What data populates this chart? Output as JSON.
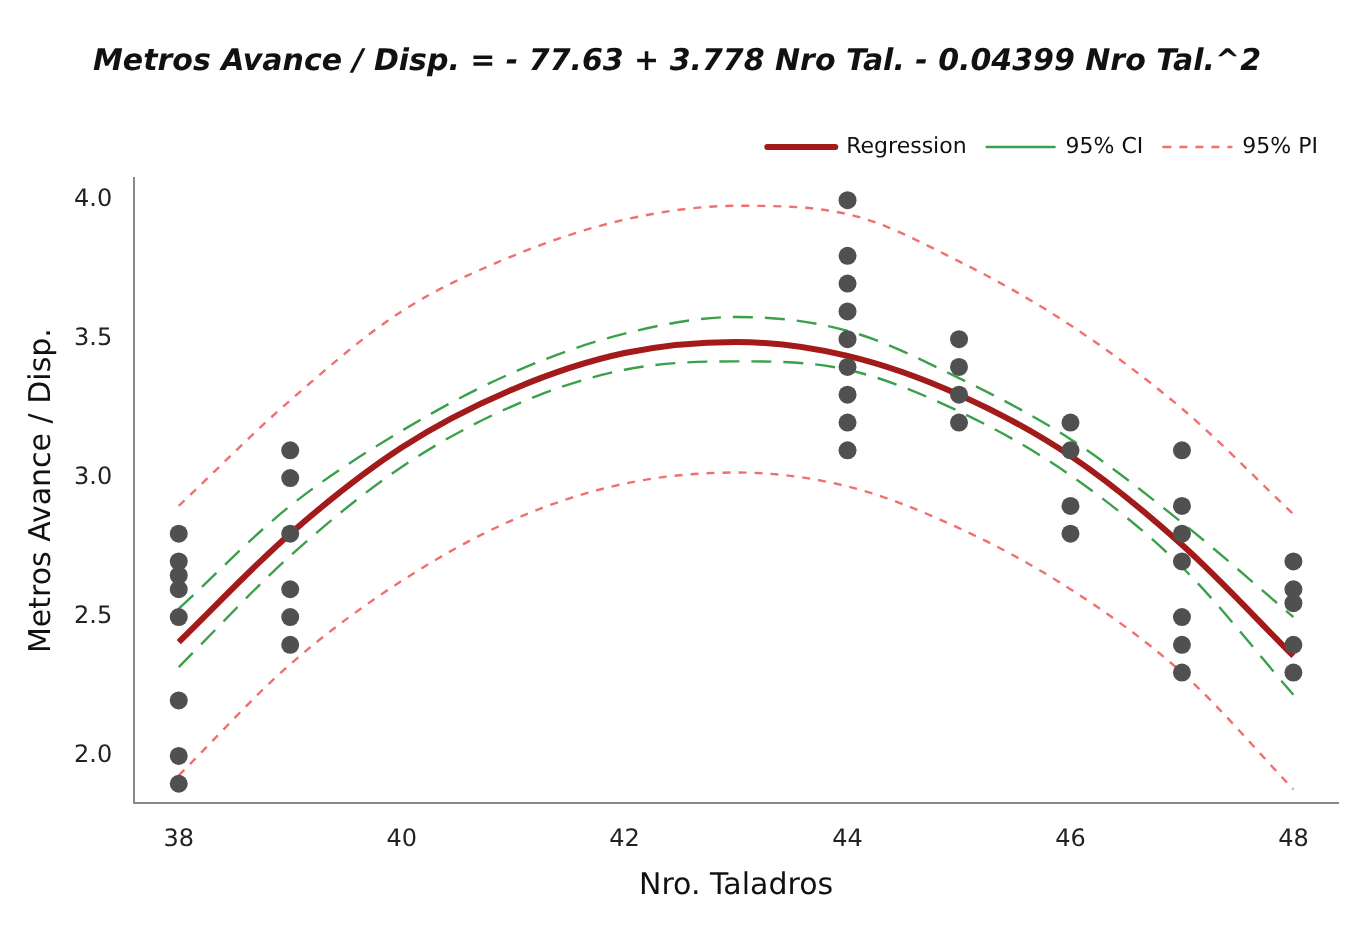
{
  "chart_data": {
    "type": "scatter",
    "title": "Metros Avance / Disp. = - 77.63 + 3.778 Nro Tal. - 0.04399 Nro Tal.^2",
    "xlabel": "Nro. Taladros",
    "ylabel": "Metros Avance / Disp.",
    "xlim": [
      37.6,
      48.4
    ],
    "ylim": [
      1.83,
      4.08
    ],
    "xticks": [
      38,
      40,
      42,
      44,
      46,
      48
    ],
    "yticks": [
      {
        "value": 2,
        "label": "2.0"
      },
      {
        "value": 2.5,
        "label": "2.5"
      },
      {
        "value": 3,
        "label": "3.0"
      },
      {
        "value": 3.5,
        "label": "3.5"
      },
      {
        "value": 4,
        "label": "4.0"
      }
    ],
    "grid": false,
    "legend": "top right",
    "series": [
      {
        "type": "scatter",
        "color": "#505050",
        "marker": "circle",
        "x": [
          38,
          38,
          38,
          38,
          38,
          38,
          38,
          38,
          39,
          39,
          39,
          39,
          39,
          39,
          44,
          44,
          44,
          44,
          44,
          44,
          44,
          44,
          44,
          45,
          45,
          45,
          45,
          46,
          46,
          46,
          46,
          47,
          47,
          47,
          47,
          47,
          47,
          47,
          48,
          48,
          48,
          48,
          48
        ],
        "values": [
          2.8,
          2.7,
          2.65,
          2.6,
          2.5,
          2.2,
          2.0,
          1.9,
          3.1,
          3.0,
          2.8,
          2.6,
          2.5,
          2.4,
          4.0,
          3.8,
          3.7,
          3.6,
          3.5,
          3.4,
          3.3,
          3.2,
          3.1,
          3.5,
          3.4,
          3.3,
          3.2,
          3.2,
          3.1,
          2.9,
          2.8,
          3.1,
          2.9,
          2.8,
          2.7,
          2.5,
          2.4,
          2.3,
          2.7,
          2.6,
          2.55,
          2.4,
          2.3
        ]
      },
      {
        "type": "line",
        "name": "Regression",
        "color": "#a31a1a",
        "line_style": "solid",
        "marker": "none",
        "x": [
          38,
          39,
          40,
          41,
          42,
          43,
          44,
          45,
          46,
          47,
          48
        ],
        "values": [
          2.41,
          2.8,
          3.11,
          3.32,
          3.45,
          3.49,
          3.44,
          3.3,
          3.08,
          2.76,
          2.36
        ]
      },
      {
        "type": "line",
        "name": "95% CI",
        "color": "#3aa04a",
        "line_style": "dashed",
        "marker": "none",
        "x": [
          38,
          39,
          40,
          41,
          42,
          43,
          44,
          45,
          46,
          47,
          48
        ],
        "values": [
          2.53,
          2.9,
          3.17,
          3.38,
          3.52,
          3.58,
          3.53,
          3.36,
          3.14,
          2.84,
          2.5
        ]
      },
      {
        "type": "line",
        "color": "#3aa04a",
        "line_style": "dashed",
        "marker": "none",
        "x": [
          38,
          39,
          40,
          41,
          42,
          43,
          44,
          45,
          46,
          47,
          48
        ],
        "values": [
          2.32,
          2.72,
          3.04,
          3.26,
          3.39,
          3.42,
          3.39,
          3.24,
          3.01,
          2.68,
          2.22
        ]
      },
      {
        "type": "line",
        "name": "95% PI",
        "color": "#f07070",
        "line_style": "dotted",
        "marker": "none",
        "x": [
          38,
          39,
          40,
          41,
          42,
          43,
          44,
          45,
          46,
          47,
          48
        ],
        "values": [
          2.9,
          3.28,
          3.6,
          3.8,
          3.93,
          3.98,
          3.95,
          3.78,
          3.55,
          3.25,
          2.87
        ]
      },
      {
        "type": "line",
        "color": "#f07070",
        "line_style": "dotted",
        "marker": "none",
        "x": [
          38,
          39,
          40,
          41,
          42,
          43,
          44,
          45,
          46,
          47,
          48
        ],
        "values": [
          1.93,
          2.33,
          2.63,
          2.85,
          2.98,
          3.02,
          2.97,
          2.82,
          2.6,
          2.3,
          1.88
        ]
      }
    ]
  }
}
